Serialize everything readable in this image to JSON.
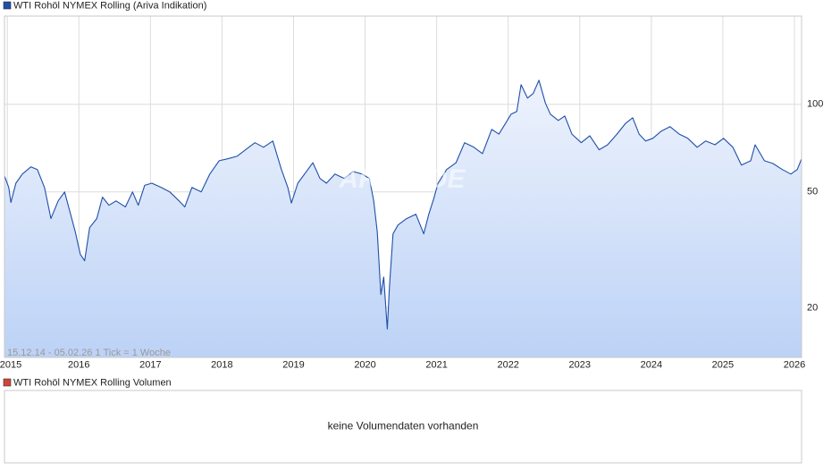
{
  "chart_data": {
    "type": "line",
    "log_scale": true,
    "grid": true,
    "xlim": [
      2014.96,
      2026.1
    ],
    "xticks": [
      2015,
      2016,
      2017,
      2018,
      2019,
      2020,
      2021,
      2022,
      2023,
      2024,
      2025,
      2026
    ],
    "ylim": [
      13.5,
      201
    ],
    "yticks": [
      20,
      50,
      100
    ],
    "range_note": "15.12.14 - 05.02.26   1 Tick = 1 Woche",
    "watermark": "ARIVA.DE",
    "x": [
      2014.96,
      2015.02,
      2015.05,
      2015.12,
      2015.21,
      2015.33,
      2015.42,
      2015.52,
      2015.61,
      2015.71,
      2015.8,
      2015.9,
      2015.95,
      2016.02,
      2016.08,
      2016.15,
      2016.25,
      2016.33,
      2016.42,
      2016.52,
      2016.65,
      2016.75,
      2016.83,
      2016.92,
      2017.02,
      2017.15,
      2017.27,
      2017.4,
      2017.48,
      2017.58,
      2017.71,
      2017.83,
      2017.96,
      2018.08,
      2018.21,
      2018.33,
      2018.46,
      2018.58,
      2018.71,
      2018.83,
      2018.92,
      2018.97,
      2019.06,
      2019.18,
      2019.27,
      2019.37,
      2019.46,
      2019.58,
      2019.71,
      2019.83,
      2019.96,
      2020.06,
      2020.12,
      2020.17,
      2020.22,
      2020.26,
      2020.31,
      2020.34,
      2020.39,
      2020.46,
      2020.58,
      2020.71,
      2020.82,
      2020.89,
      2020.96,
      2021.02,
      2021.14,
      2021.27,
      2021.39,
      2021.52,
      2021.64,
      2021.77,
      2021.87,
      2021.95,
      2022.04,
      2022.12,
      2022.18,
      2022.27,
      2022.35,
      2022.43,
      2022.52,
      2022.59,
      2022.7,
      2022.79,
      2022.89,
      2023.02,
      2023.14,
      2023.27,
      2023.39,
      2023.52,
      2023.64,
      2023.74,
      2023.83,
      2023.92,
      2024.02,
      2024.14,
      2024.26,
      2024.39,
      2024.51,
      2024.64,
      2024.76,
      2024.89,
      2025.01,
      2025.14,
      2025.26,
      2025.39,
      2025.45,
      2025.58,
      2025.7,
      2025.83,
      2025.95,
      2026.04,
      2026.1
    ],
    "series": [
      {
        "name": "WTI Rohöl NYMEX Rolling (Ariva Indikation)",
        "color": "#1f4fa8",
        "values": [
          56.8,
          51.8,
          46,
          53.6,
          57.6,
          61,
          59.7,
          51.8,
          40.5,
          46.6,
          50,
          40.5,
          36.4,
          30.5,
          29,
          37.7,
          40.5,
          48,
          45,
          46.6,
          44.4,
          50,
          45,
          52.7,
          53.6,
          51.8,
          50,
          46.6,
          44.4,
          51.8,
          50,
          57.6,
          64,
          65,
          66.3,
          69.8,
          73.8,
          71.2,
          74.8,
          59.7,
          51.8,
          45.8,
          53.6,
          58.8,
          63,
          55.6,
          53.6,
          57.6,
          55.6,
          58.8,
          57.6,
          55.6,
          46.6,
          36.4,
          22.2,
          25.5,
          16.9,
          23.6,
          35.9,
          38.5,
          40.5,
          41.9,
          35.9,
          41.9,
          47.4,
          53.6,
          59.7,
          63,
          73.8,
          71.2,
          67.7,
          82,
          79,
          85,
          92.5,
          94.5,
          116.8,
          105,
          109,
          121,
          101,
          92.5,
          88,
          91.2,
          79,
          73.8,
          78,
          69.8,
          72.6,
          79,
          86,
          89.9,
          79,
          74.8,
          76.4,
          80.9,
          83.8,
          79,
          76.4,
          71.2,
          74.8,
          72.6,
          76.4,
          71.2,
          61.8,
          64,
          72.6,
          64,
          62.6,
          59.7,
          57.6,
          59.7,
          65
        ]
      }
    ]
  },
  "volume_panel": {
    "title": "WTI Rohöl NYMEX Rolling Volumen",
    "color": "#d0453a",
    "message": "keine Volumendaten vorhanden"
  }
}
